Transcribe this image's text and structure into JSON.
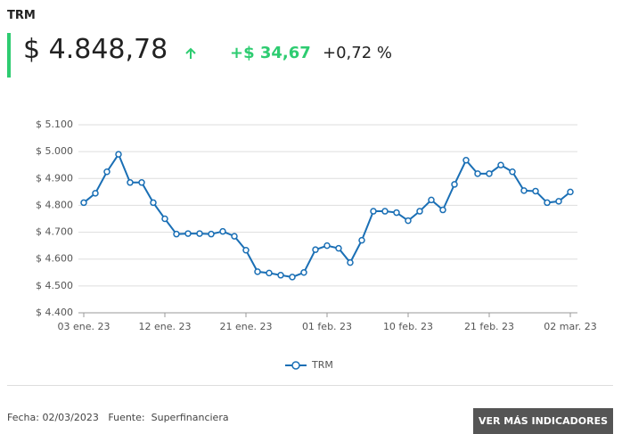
{
  "header": {
    "title": "TRM",
    "price": "$ 4.848,78",
    "change": "+$ 34,67",
    "percent": "+0,72 %"
  },
  "chart_data": {
    "type": "line",
    "categories": [
      "03 ene. 23",
      null,
      null,
      null,
      null,
      null,
      null,
      "12 ene. 23",
      null,
      null,
      null,
      null,
      null,
      null,
      "21 ene. 23",
      null,
      null,
      null,
      null,
      null,
      null,
      "01 feb. 23",
      null,
      null,
      null,
      null,
      null,
      null,
      "10 feb. 23",
      null,
      null,
      null,
      null,
      null,
      null,
      "21 feb. 23",
      null,
      null,
      null,
      null,
      null,
      null,
      "02 mar. 23"
    ],
    "series": [
      {
        "name": "TRM",
        "color": "#1a6fb5",
        "values": [
          4810,
          4845,
          4925,
          4990,
          4885,
          4885,
          4810,
          4750,
          4693,
          4695,
          4695,
          4693,
          4703,
          4685,
          4633,
          4553,
          4548,
          4540,
          4533,
          4550,
          4635,
          4650,
          4640,
          4587,
          4670,
          4778,
          4778,
          4773,
          4743,
          4778,
          4820,
          4783,
          4878,
          4968,
          4918,
          4918,
          4950,
          4925,
          4855,
          4853,
          4810,
          4815,
          4850
        ]
      }
    ],
    "ylim": [
      4400,
      5100
    ],
    "yticks": [
      {
        "value": 4400,
        "label": "$ 4.400"
      },
      {
        "value": 4500,
        "label": "$ 4.500"
      },
      {
        "value": 4600,
        "label": "$ 4.600"
      },
      {
        "value": 4700,
        "label": "$ 4.700"
      },
      {
        "value": 4800,
        "label": "$ 4.800"
      },
      {
        "value": 4900,
        "label": "$ 4.900"
      },
      {
        "value": 5000,
        "label": "$ 5.000"
      },
      {
        "value": 5100,
        "label": "$ 5.100"
      }
    ],
    "grid": true
  },
  "footer": {
    "date_label": "Fecha:",
    "date": "02/03/2023",
    "source_label": "Fuente:",
    "source": "Superfinanciera",
    "button": "VER MÁS INDICADORES"
  }
}
